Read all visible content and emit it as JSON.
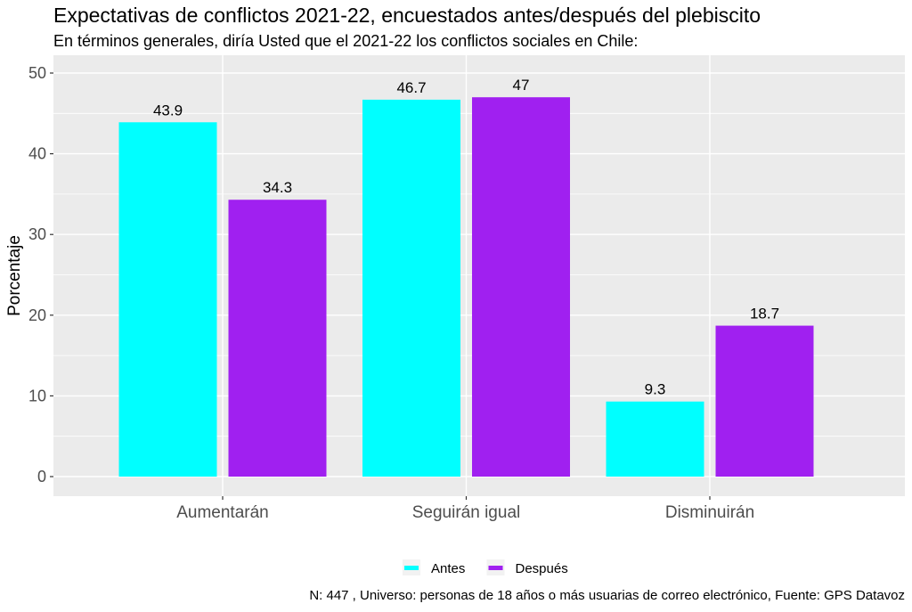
{
  "title": "Expectativas de conflictos 2021-22, encuestados antes/después del plebiscito",
  "subtitle": "En términos generales, diría Usted que el 2021-22 los conflictos sociales en Chile:",
  "caption": "N: 447 , Universo: personas de 18 años o más usuarias de correo electrónico, Fuente: GPS Datavoz",
  "chart_data": {
    "type": "bar",
    "title": "Expectativas de conflictos 2021-22, encuestados antes/después del plebiscito",
    "subtitle": "En términos generales, diría Usted que el 2021-22 los conflictos sociales en Chile:",
    "xlabel": "",
    "ylabel": "Porcentaje",
    "ylim": [
      0,
      50
    ],
    "yticks": [
      0,
      10,
      20,
      30,
      40,
      50
    ],
    "categories": [
      "Aumentarán",
      "Seguirán igual",
      "Disminuirán"
    ],
    "series": [
      {
        "name": "Antes",
        "color": "#00FFFF",
        "values": [
          43.9,
          46.7,
          9.3
        ],
        "labels": [
          "43.9",
          "46.7",
          "9.3"
        ]
      },
      {
        "name": "Después",
        "color": "#A020F0",
        "values": [
          34.3,
          47,
          18.7
        ],
        "labels": [
          "34.3",
          "47",
          "18.7"
        ]
      }
    ],
    "grid": true,
    "legend_position": "bottom",
    "panel_color": "#EBEBEB",
    "grid_color": "#FFFFFF"
  }
}
